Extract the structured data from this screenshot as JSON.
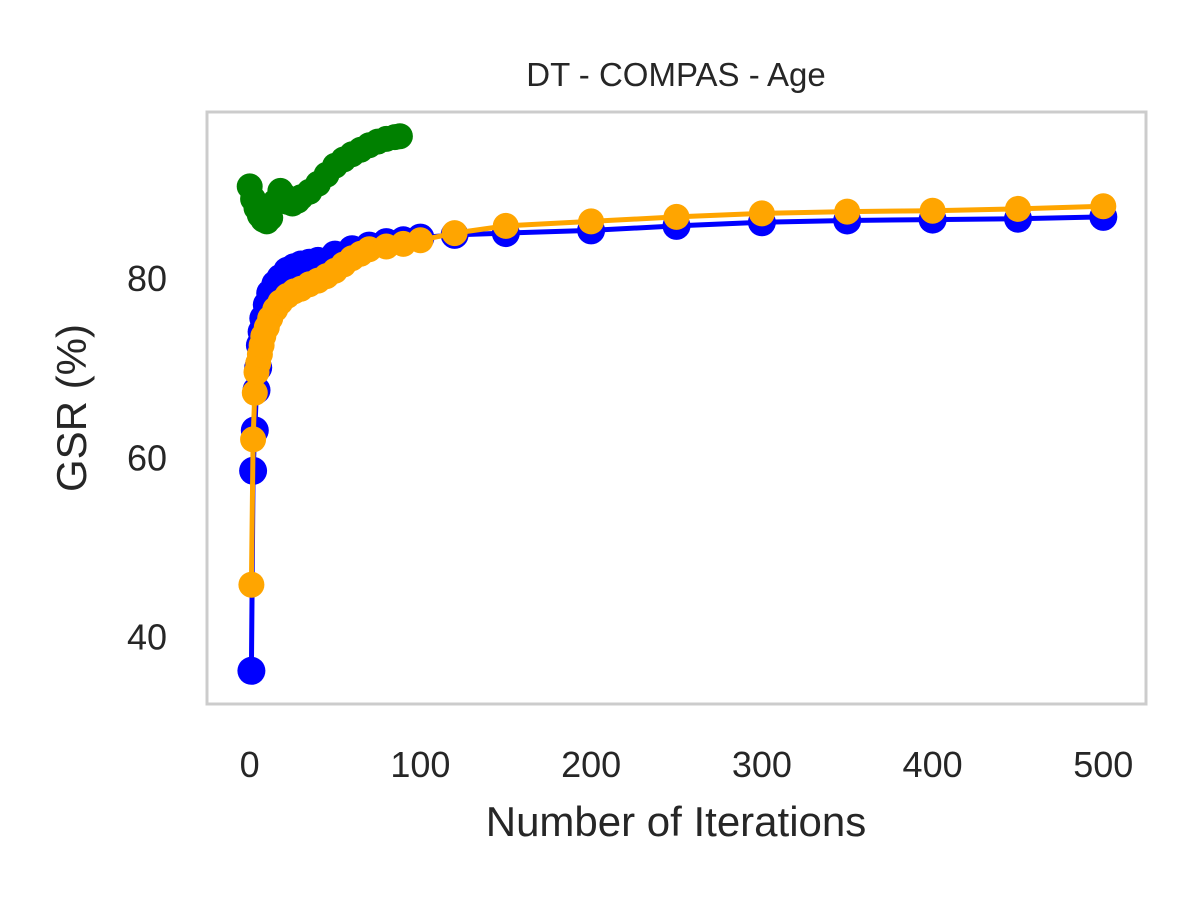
{
  "chart_data": {
    "type": "line",
    "title": "DT - COMPAS - Age",
    "xlabel": "Number of Iterations",
    "ylabel": "GSR (%)",
    "xlim": [
      -25,
      525
    ],
    "ylim": [
      32.5,
      98.5
    ],
    "xticks": [
      0,
      100,
      200,
      300,
      400,
      500
    ],
    "yticks": [
      40,
      60,
      80
    ],
    "grid": false,
    "legend": "none",
    "series": [
      {
        "color": "#0000ff",
        "marker_size": 14,
        "x": [
          1,
          2,
          3,
          4,
          5,
          6,
          7,
          8,
          10,
          12,
          15,
          18,
          22,
          26,
          30,
          35,
          40,
          50,
          60,
          70,
          80,
          90,
          100,
          120,
          150,
          200,
          250,
          300,
          350,
          400,
          450,
          500
        ],
        "y": [
          36.2,
          58.5,
          63,
          67.5,
          70,
          72.5,
          74,
          75.5,
          77,
          78.3,
          79.3,
          80,
          80.8,
          81.2,
          81.5,
          81.7,
          81.9,
          82.6,
          83.2,
          83.6,
          84,
          84.2,
          84.5,
          84.8,
          85,
          85.3,
          85.8,
          86.2,
          86.4,
          86.5,
          86.6,
          86.8
        ]
      },
      {
        "color": "#ffa500",
        "marker_size": 13,
        "x": [
          1,
          2,
          3,
          4,
          5,
          6,
          7,
          8,
          10,
          12,
          15,
          18,
          22,
          26,
          30,
          35,
          40,
          45,
          50,
          55,
          60,
          65,
          70,
          80,
          90,
          100,
          120,
          150,
          200,
          250,
          300,
          350,
          400,
          450,
          500
        ],
        "y": [
          45.8,
          62,
          67.2,
          69.5,
          70.5,
          71.5,
          72.5,
          73.5,
          74.5,
          75.5,
          76.5,
          77.3,
          78,
          78.5,
          78.8,
          79.3,
          79.7,
          80.2,
          80.8,
          81.5,
          82.2,
          82.7,
          83.2,
          83.5,
          83.8,
          84.2,
          85,
          85.8,
          86.3,
          86.8,
          87.2,
          87.4,
          87.5,
          87.7,
          88
        ]
      },
      {
        "color": "#008000",
        "marker_size": 13,
        "x": [
          0,
          2,
          4,
          6,
          8,
          10,
          12,
          15,
          18,
          20,
          22,
          25,
          28,
          30,
          35,
          40,
          45,
          50,
          55,
          60,
          65,
          70,
          75,
          80,
          85,
          88
        ],
        "y": [
          90.2,
          88.8,
          87.8,
          87,
          86.5,
          86.3,
          86.7,
          88.5,
          89.7,
          89.2,
          88.5,
          88.3,
          88.6,
          89,
          89.6,
          90.5,
          91.5,
          92.5,
          93.2,
          93.8,
          94.3,
          94.8,
          95.2,
          95.5,
          95.7,
          95.8
        ]
      }
    ]
  }
}
